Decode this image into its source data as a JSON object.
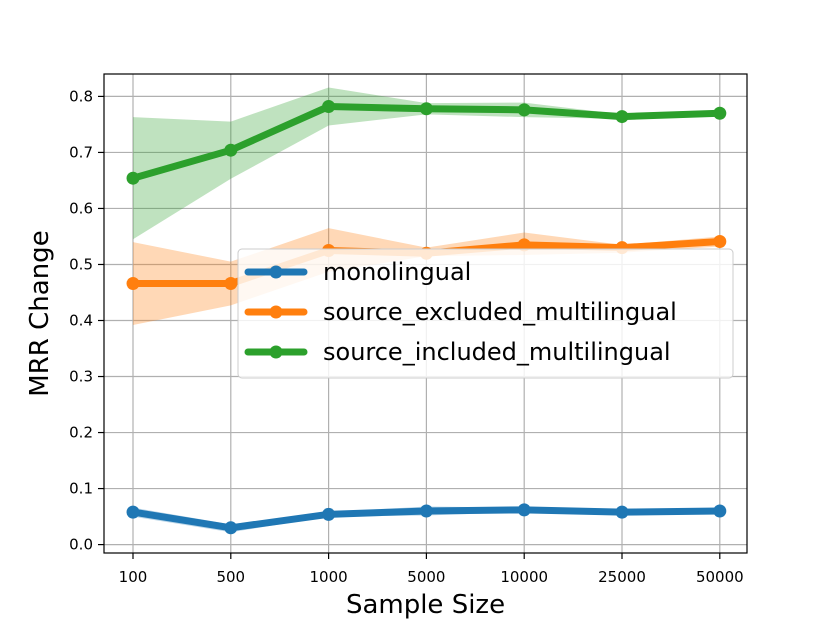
{
  "chart_data": {
    "type": "line",
    "title": "",
    "xlabel": "Sample Size",
    "ylabel": "MRR Change",
    "categories": [
      "100",
      "500",
      "1000",
      "5000",
      "10000",
      "25000",
      "50000"
    ],
    "ylim": [
      -0.015,
      0.84
    ],
    "yticks": [
      "0.0",
      "0.1",
      "0.2",
      "0.3",
      "0.4",
      "0.5",
      "0.6",
      "0.7",
      "0.8"
    ],
    "grid": true,
    "legend_position": "center-right",
    "series": [
      {
        "name": "monolingual",
        "color": "#1f77b4",
        "values": [
          0.058,
          0.03,
          0.054,
          0.06,
          0.062,
          0.058,
          0.06
        ],
        "band_upper": [
          0.066,
          0.036,
          0.058,
          0.068,
          0.066,
          0.061,
          0.063
        ],
        "band_lower": [
          0.05,
          0.022,
          0.05,
          0.052,
          0.058,
          0.055,
          0.057
        ]
      },
      {
        "name": "source_excluded_multilingual",
        "color": "#ff7f0e",
        "values": [
          0.466,
          0.466,
          0.525,
          0.52,
          0.535,
          0.53,
          0.541
        ],
        "band_upper": [
          0.54,
          0.505,
          0.565,
          0.53,
          0.557,
          0.535,
          0.55
        ],
        "band_lower": [
          0.392,
          0.427,
          0.487,
          0.515,
          0.517,
          0.521,
          0.532
        ]
      },
      {
        "name": "source_included_multilingual",
        "color": "#2ca02c",
        "values": [
          0.654,
          0.704,
          0.782,
          0.778,
          0.776,
          0.764,
          0.77
        ],
        "band_upper": [
          0.763,
          0.755,
          0.816,
          0.788,
          0.789,
          0.768,
          0.772
        ],
        "band_lower": [
          0.545,
          0.653,
          0.748,
          0.768,
          0.763,
          0.76,
          0.768
        ]
      }
    ]
  }
}
